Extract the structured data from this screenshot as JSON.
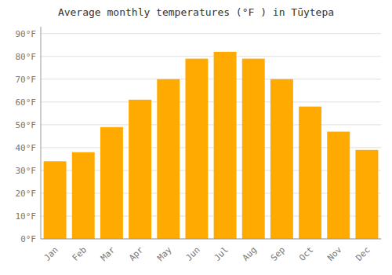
{
  "chart_data": {
    "type": "bar",
    "title": "Average monthly temperatures (°F ) in Tūytepa",
    "categories": [
      "Jan",
      "Feb",
      "Mar",
      "Apr",
      "May",
      "Jun",
      "Jul",
      "Aug",
      "Sep",
      "Oct",
      "Nov",
      "Dec"
    ],
    "values": [
      34,
      38,
      49,
      61,
      70,
      79,
      82,
      79,
      70,
      58,
      47,
      39
    ],
    "color": "#FFAA00",
    "ylim": [
      0,
      93
    ],
    "yticks": [
      {
        "value": 0,
        "label": "0°F"
      },
      {
        "value": 10,
        "label": "10°F"
      },
      {
        "value": 20,
        "label": "20°F"
      },
      {
        "value": 30,
        "label": "30°F"
      },
      {
        "value": 40,
        "label": "40°F"
      },
      {
        "value": 50,
        "label": "50°F"
      },
      {
        "value": 60,
        "label": "60°F"
      },
      {
        "value": 70,
        "label": "70°F"
      },
      {
        "value": 80,
        "label": "80°F"
      },
      {
        "value": 90,
        "label": "90°F"
      }
    ],
    "grid": true
  }
}
